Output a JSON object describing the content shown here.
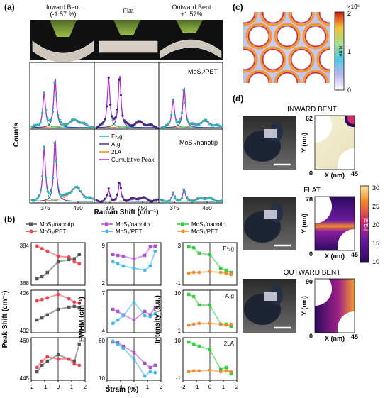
{
  "panel_labels": {
    "a": "(a)",
    "b": "(b)",
    "c": "(c)",
    "d": "(d)"
  },
  "photo_captions": {
    "inward": "Inward Bent",
    "inward_val": "(-1.57 %)",
    "flat": "Flat",
    "outward": "Outward Bent",
    "outward_val": "+1.57%"
  },
  "raman": {
    "ylabel": "Counts",
    "xlabel": "Raman Shift (cm⁻¹)",
    "xticks": [
      "375",
      "450",
      "375",
      "450",
      "375",
      "450"
    ],
    "top_label": "MoS₂/PET",
    "bottom_label": "MoS₂/nanotip",
    "legend": [
      "E¹₂g",
      "A₁g",
      "2LA",
      "Cumulative Peak"
    ],
    "legend_colors": [
      "#1fb59c",
      "#2b3fa8",
      "#e08a1e",
      "#c026d3"
    ]
  },
  "strain": {
    "xlabel": "Strain (%)",
    "xticks": [
      "-2",
      "-1",
      "0",
      "1",
      "2"
    ],
    "col1": {
      "ylabel": "Peak Shift (cm⁻¹)",
      "legend": [
        "MoS₂/nanotip",
        "MoS₂/PET"
      ],
      "rows": [
        {
          "ticks": [
            "384",
            "368"
          ],
          "tag": ""
        },
        {
          "ticks": [
            "406",
            "402"
          ],
          "tag": ""
        },
        {
          "ticks": [
            "460",
            "445"
          ],
          "tag": ""
        }
      ]
    },
    "col2": {
      "ylabel": "FWHM (cm⁻¹)",
      "legend": [
        "MoS₂/nanotip",
        "MoS₂/PET"
      ],
      "rows": [
        {
          "ticks": [
            "9",
            "2"
          ]
        },
        {
          "ticks": [
            "7",
            "4"
          ]
        },
        {
          "ticks": [
            "60",
            "10"
          ]
        }
      ]
    },
    "col3": {
      "ylabel": "Intensity (a.u.)",
      "legend": [
        "MoS₂/nanotip",
        "MoS₂/PET"
      ],
      "rows": [
        {
          "ticks": [
            "3",
            "-1"
          ],
          "tag": "E¹₂g"
        },
        {
          "ticks": [
            "10",
            "-1"
          ],
          "tag": "A₁g"
        },
        {
          "ticks": [
            "10",
            "-1"
          ],
          "tag": "2LA"
        }
      ]
    },
    "colors": {
      "c1_nanotip": "#555555",
      "c1_pet": "#e8424a",
      "c2_nanotip": "#b04fd6",
      "c2_pet": "#3fb6e8",
      "c3_nanotip": "#2fd03a",
      "c3_pet": "#f08a2a"
    }
  },
  "sim_c": {
    "colorbar_title": "×10⁸",
    "ticks": [
      "2",
      "1",
      "0"
    ],
    "cb_label": "|N/m²|"
  },
  "sim_d": {
    "sections": [
      {
        "title": "INWARD BENT",
        "ytop": "62",
        "ybot": "0",
        "xleft": "0",
        "xright": "45"
      },
      {
        "title": "FLAT",
        "ytop": "78",
        "ybot": "0",
        "xleft": "0",
        "xright": "45"
      },
      {
        "title": "OUTWARD BENT",
        "ytop": "90",
        "ybot": "0",
        "xleft": "0",
        "xright": "45"
      }
    ],
    "ylabel": "Y (nm)",
    "xlabel": "X (nm)",
    "cb_ticks": [
      "30",
      "25",
      "20",
      "15",
      "10"
    ],
    "cb_label": "|E/E₀|"
  }
}
